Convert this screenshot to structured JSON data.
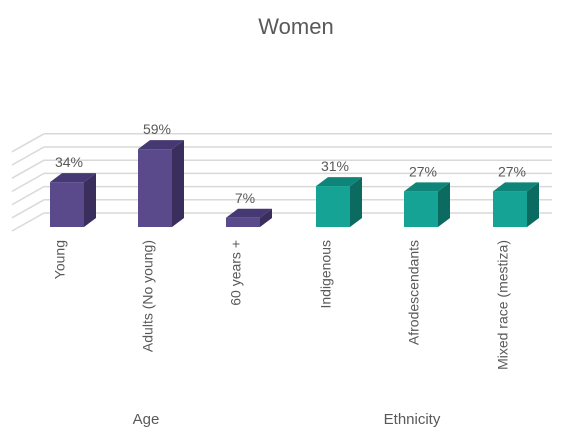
{
  "chart_data": {
    "type": "bar",
    "title": "Women",
    "style": "3d-columns",
    "grid": true,
    "ylim": [
      0,
      70
    ],
    "categories": [
      "Young",
      "Adults (No young)",
      "60 years +",
      "Indigenous",
      "Afrodescendants",
      "Mixed race (mestiza)"
    ],
    "values": [
      34,
      59,
      7,
      31,
      27,
      27
    ],
    "data_labels": [
      "34%",
      "59%",
      "7%",
      "31%",
      "27%",
      "27%"
    ],
    "groups": [
      {
        "name": "Age",
        "indices": [
          0,
          1,
          2
        ],
        "color": "#5B4A8B",
        "side_color": "#3A2E5C",
        "top_color": "#463872"
      },
      {
        "name": "Ethnicity",
        "indices": [
          3,
          4,
          5
        ],
        "color": "#14A394",
        "side_color": "#0B6B61",
        "top_color": "#0F857A"
      }
    ]
  },
  "colors": {
    "grid": "#D9D9D9",
    "text": "#595959",
    "title": "#595959"
  }
}
